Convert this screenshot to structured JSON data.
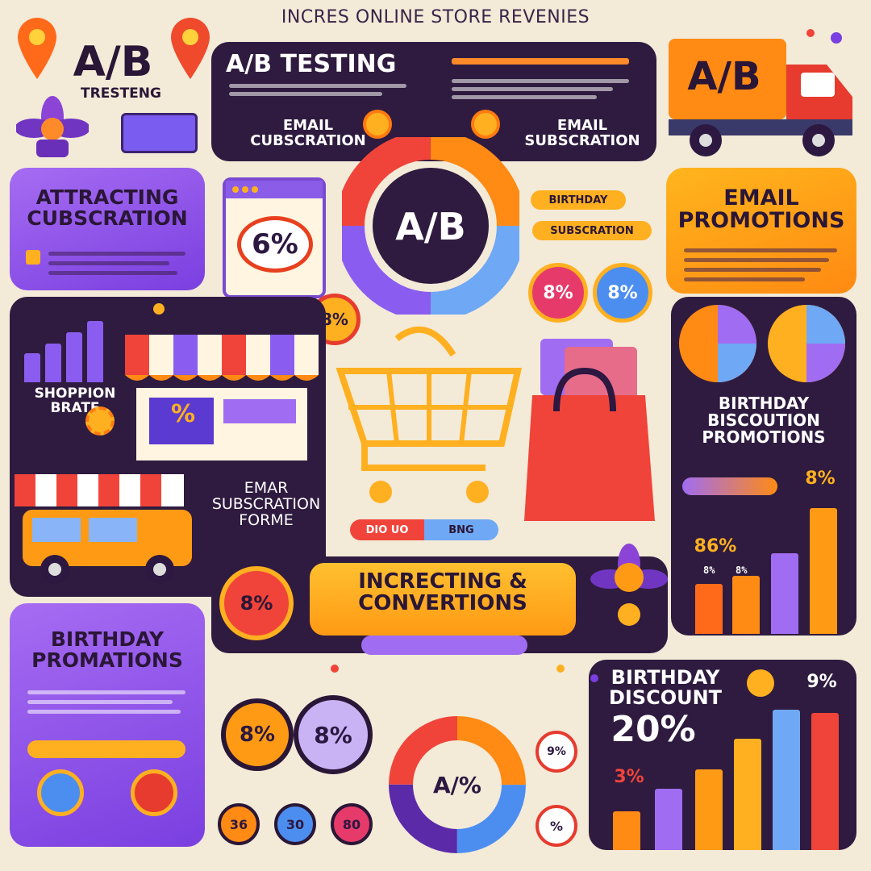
{
  "colors": {
    "background": "#f3ead8",
    "dark_panel": "#2f1b3f",
    "purple": "#9b5cf0",
    "orange": "#ff9a14",
    "red": "#f0443a",
    "blue": "#4c8ef0"
  },
  "page_title": "INCRES ONLINE STORE REVENIES",
  "ab_logo": {
    "big": "A/B",
    "small": "TRESTENG"
  },
  "ab_testing": {
    "title": "A/B TESTING",
    "subtitle": "EMAIL CUBSCRATION"
  },
  "email_subscription": {
    "title": "EMAIL SUBSCRATION"
  },
  "truck": {
    "label": "A/B"
  },
  "attracting": {
    "title": "ATTRACTING CUBSCRATION"
  },
  "browser_card": {
    "percent": "6%"
  },
  "ab_wheel": {
    "center": "A/B"
  },
  "birthday_email_pill": "BIRTHDAY",
  "subscription_pill": "SUBSCRATION",
  "email_promotions": {
    "title": "EMAIL PROMOTIONS"
  },
  "circles_mid": [
    "8%",
    "8%",
    "8%"
  ],
  "shop_rate": {
    "title": "SHOPPION BRATE",
    "sign": "%"
  },
  "birthday_discount_promo": {
    "title": "BIRTHDAY BISCOUTION PROMOTIONS"
  },
  "emar_form": {
    "title": "EMAR SUBSCRATION FORME"
  },
  "cart_pills": [
    "DIO UO",
    "BNG"
  ],
  "conversions": {
    "title": "INCRECTING & CONVERTIONS"
  },
  "right_chart": {
    "top_label": "8%",
    "mid_label": "86%",
    "percent_labels": [
      "8%",
      "8%"
    ]
  },
  "circles_lower": [
    "8%",
    "8%"
  ],
  "birthday_promotions": {
    "title": "BIRTHDAY PROMATIONS"
  },
  "bottom_circles": [
    "36",
    "30",
    "80",
    "%"
  ],
  "donut": {
    "center": "A/%"
  },
  "birthday_discount": {
    "title": "BIRTHDAY DISCOUNT",
    "value": "20%",
    "top_label": "9%",
    "side_label": "3%"
  },
  "small_circle_right": "9%",
  "icons": [
    "map-pin-icon",
    "flower-icon",
    "shopping-cart-icon",
    "shopping-bag-icon",
    "storefront-icon",
    "delivery-truck-icon",
    "van-icon",
    "gear-icon",
    "sun-icon"
  ]
}
